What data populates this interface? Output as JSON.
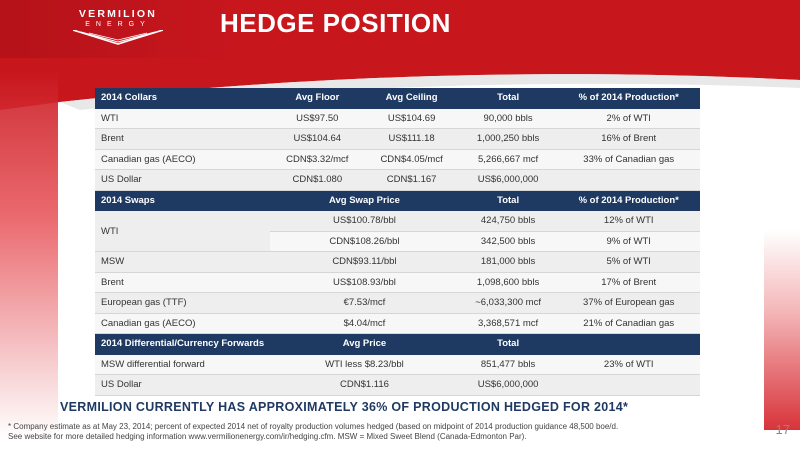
{
  "header": {
    "brand_name": "VERMILION",
    "brand_sub": "ENERGY",
    "title": "HEDGE POSITION"
  },
  "tables": {
    "collars": {
      "columns": [
        "2014 Collars",
        "Avg Floor",
        "Avg Ceiling",
        "Total",
        "% of 2014 Production*"
      ],
      "rows": [
        [
          "WTI",
          "US$97.50",
          "US$104.69",
          "90,000 bbls",
          "2% of WTI"
        ],
        [
          "Brent",
          "US$104.64",
          "US$111.18",
          "1,000,250 bbls",
          "16% of Brent"
        ],
        [
          "Canadian gas (AECO)",
          "CDN$3.32/mcf",
          "CDN$4.05/mcf",
          "5,266,667 mcf",
          "33% of Canadian gas"
        ],
        [
          "US Dollar",
          "CDN$1.080",
          "CDN$1.167",
          "US$6,000,000",
          ""
        ]
      ]
    },
    "swaps": {
      "columns": [
        "2014 Swaps",
        "Avg Swap Price",
        "Total",
        "% of 2014 Production*"
      ],
      "wti_label": "WTI",
      "wti_rows": [
        [
          "US$100.78/bbl",
          "424,750 bbls",
          "12% of WTI"
        ],
        [
          "CDN$108.26/bbl",
          "342,500 bbls",
          "9% of WTI"
        ]
      ],
      "rows": [
        [
          "MSW",
          "CDN$93.11/bbl",
          "181,000 bbls",
          "5% of WTI"
        ],
        [
          "Brent",
          "US$108.93/bbl",
          "1,098,600 bbls",
          "17% of Brent"
        ],
        [
          "European gas (TTF)",
          "€7.53/mcf",
          "~6,033,300 mcf",
          "37% of European gas"
        ],
        [
          "Canadian gas (AECO)",
          "$4.04/mcf",
          "3,368,571 mcf",
          "21% of Canadian gas"
        ]
      ]
    },
    "forwards": {
      "columns": [
        "2014 Differential/Currency Forwards",
        "Avg Price",
        "Total",
        ""
      ],
      "rows": [
        [
          "MSW differential forward",
          "WTI less $8.23/bbl",
          "851,477 bbls",
          "23% of WTI"
        ],
        [
          "US Dollar",
          "CDN$1.116",
          "US$6,000,000",
          ""
        ]
      ]
    }
  },
  "summary": "VERMILION CURRENTLY HAS APPROXIMATELY 36% OF PRODUCTION HEDGED FOR 2014*",
  "footnote_line1": "*  Company estimate as at May 23, 2014; percent of expected 2014 net of royalty production volumes hedged (based on midpoint of 2014 production guidance 48,500 boe/d.",
  "footnote_line2": "   See website for more detailed hedging information www.vermilionenergy.com/ir/hedging.cfm.  MSW = Mixed Sweet Blend (Canada-Edmonton Par).",
  "page_number": "17"
}
